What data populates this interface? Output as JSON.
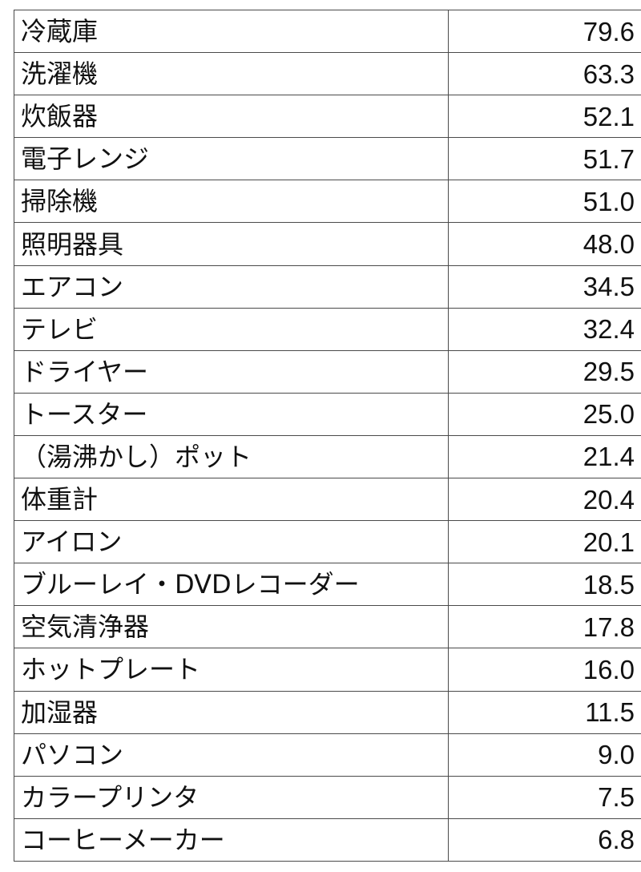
{
  "rows": [
    {
      "item": "冷蔵庫",
      "value": "79.6"
    },
    {
      "item": "洗濯機",
      "value": "63.3"
    },
    {
      "item": "炊飯器",
      "value": "52.1"
    },
    {
      "item": "電子レンジ",
      "value": "51.7"
    },
    {
      "item": "掃除機",
      "value": "51.0"
    },
    {
      "item": "照明器具",
      "value": "48.0"
    },
    {
      "item": "エアコン",
      "value": "34.5"
    },
    {
      "item": "テレビ",
      "value": "32.4"
    },
    {
      "item": "ドライヤー",
      "value": "29.5"
    },
    {
      "item": "トースター",
      "value": "25.0"
    },
    {
      "item": "（湯沸かし）ポット",
      "value": "21.4"
    },
    {
      "item": "体重計",
      "value": "20.4"
    },
    {
      "item": "アイロン",
      "value": "20.1"
    },
    {
      "item": "ブルーレイ・DVDレコーダー",
      "value": "18.5"
    },
    {
      "item": "空気清浄器",
      "value": "17.8"
    },
    {
      "item": "ホットプレート",
      "value": "16.0"
    },
    {
      "item": "加湿器",
      "value": "11.5"
    },
    {
      "item": "パソコン",
      "value": "9.0"
    },
    {
      "item": "カラープリンタ",
      "value": "7.5"
    },
    {
      "item": "コーヒーメーカー",
      "value": "6.8"
    }
  ]
}
